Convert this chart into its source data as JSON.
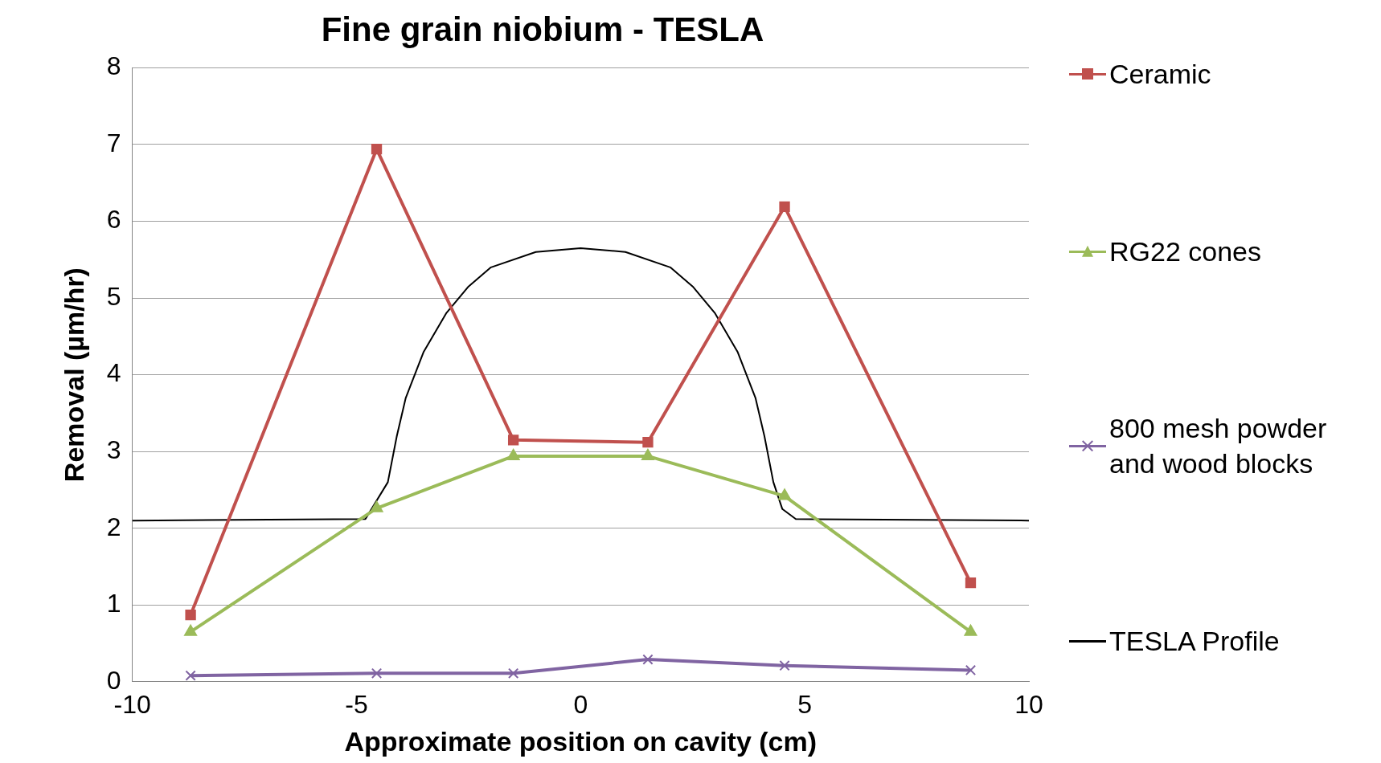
{
  "chart_data": {
    "type": "line",
    "title": "Fine grain niobium - TESLA",
    "xlabel": "Approximate position on cavity (cm)",
    "ylabel": "Removal (µm/hr)",
    "xlim": [
      -10,
      10
    ],
    "xticks": [
      -10,
      -5,
      0,
      5,
      10
    ],
    "ylim": [
      0,
      8
    ],
    "yticks": [
      0,
      1,
      2,
      3,
      4,
      5,
      6,
      7,
      8
    ],
    "grid": "y",
    "legend": "right",
    "line_style": "solid",
    "series": [
      {
        "name": "Ceramic",
        "color": "#c0504d",
        "marker": "square",
        "x": [
          -8.7,
          -4.55,
          -1.5,
          1.5,
          4.55,
          8.7
        ],
        "values": [
          0.87,
          6.94,
          3.15,
          3.12,
          6.19,
          1.29
        ]
      },
      {
        "name": "RG22 cones",
        "color": "#9bbb59",
        "marker": "triangle",
        "x": [
          -8.7,
          -4.55,
          -1.5,
          1.5,
          4.55,
          8.7
        ],
        "values": [
          0.65,
          2.26,
          2.94,
          2.94,
          2.42,
          0.65
        ]
      },
      {
        "name": "800 mesh powder and wood blocks",
        "color": "#8064a2",
        "marker": "cross",
        "x": [
          -8.7,
          -4.55,
          -1.5,
          1.5,
          4.55,
          8.7
        ],
        "values": [
          0.08,
          0.11,
          0.11,
          0.29,
          0.21,
          0.15
        ]
      },
      {
        "name": "TESLA Profile",
        "color": "#000000",
        "marker": "none",
        "x": [
          -10,
          -4.8,
          -4.3,
          -4.1,
          -3.9,
          -3.5,
          -3,
          -2.5,
          -2,
          -1,
          0,
          1,
          2,
          2.5,
          3,
          3.5,
          3.9,
          4.1,
          4.3,
          4.5,
          4.8,
          10
        ],
        "values": [
          2.1,
          2.12,
          2.6,
          3.2,
          3.7,
          4.3,
          4.8,
          5.15,
          5.4,
          5.6,
          5.65,
          5.6,
          5.4,
          5.15,
          4.8,
          4.3,
          3.7,
          3.2,
          2.6,
          2.25,
          2.12,
          2.1
        ]
      }
    ]
  }
}
